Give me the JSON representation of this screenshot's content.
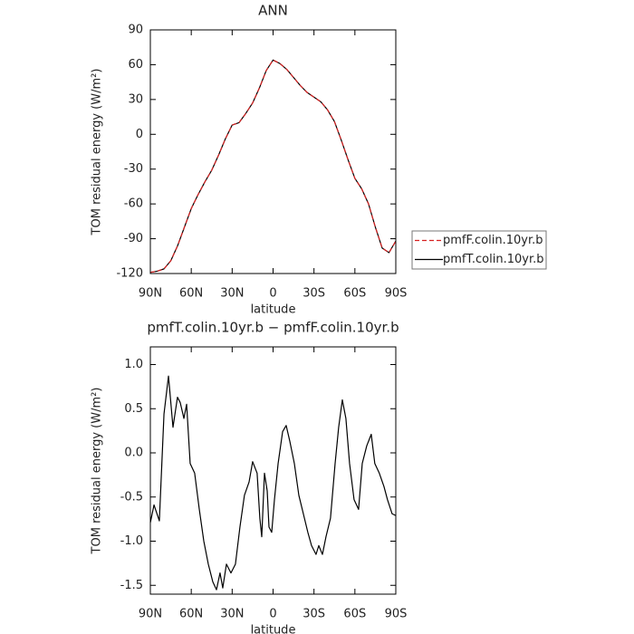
{
  "chart_data": [
    {
      "type": "line",
      "title": "ANN",
      "xlabel": "latitude",
      "ylabel": "TOM residual energy (W/m²)",
      "x": [
        90,
        85,
        80,
        75,
        70,
        65,
        60,
        55,
        50,
        45,
        40,
        35,
        30,
        25,
        20,
        15,
        10,
        5,
        0,
        -5,
        -10,
        -15,
        -20,
        -25,
        -30,
        -35,
        -40,
        -45,
        -50,
        -55,
        -60,
        -65,
        -70,
        -75,
        -80,
        -85,
        -90
      ],
      "series": [
        {
          "name": "pmfF.colin.10yr.b",
          "color": "#d62020",
          "dash": true,
          "values": [
            -119,
            -118,
            -116,
            -109,
            -96,
            -80,
            -64,
            -52,
            -41,
            -31,
            -18,
            -4,
            8,
            10,
            18,
            27,
            40,
            55,
            64,
            61,
            56,
            49,
            42,
            36,
            32,
            28,
            21,
            11,
            -5,
            -22,
            -38,
            -47,
            -60,
            -80,
            -98,
            -102,
            -92
          ]
        },
        {
          "name": "pmfT.colin.10yr.b",
          "color": "#000000",
          "dash": false,
          "values": [
            -119,
            -118,
            -116,
            -109,
            -96,
            -80,
            -64,
            -52,
            -41,
            -31,
            -18,
            -4,
            8,
            10,
            18,
            27,
            40,
            55,
            64,
            61,
            56,
            49,
            42,
            36,
            32,
            28,
            21,
            11,
            -5,
            -22,
            -38,
            -47,
            -60,
            -80,
            -98,
            -102,
            -92
          ]
        }
      ],
      "xlim": [
        90,
        -90
      ],
      "xticks": [
        {
          "value": 90,
          "label": "90N"
        },
        {
          "value": 60,
          "label": "60N"
        },
        {
          "value": 30,
          "label": "30N"
        },
        0,
        {
          "value": -30,
          "label": "30S"
        },
        {
          "value": -60,
          "label": "60S"
        },
        {
          "value": -90,
          "label": "90S"
        }
      ],
      "ylim": [
        -120,
        90
      ],
      "yticks": [
        90,
        60,
        30,
        0,
        -30,
        -60,
        -90,
        -120
      ],
      "legend": "right"
    },
    {
      "type": "line",
      "title": "pmfT.colin.10yr.b − pmfF.colin.10yr.b",
      "xlabel": "latitude",
      "ylabel": "TOM residual energy (W/m²)",
      "x": [
        90,
        87.3,
        83.4,
        80,
        76.7,
        73.4,
        70.1,
        68.1,
        65.4,
        63.4,
        60.8,
        57.5,
        54.1,
        50.8,
        47.5,
        44.2,
        41.5,
        38.9,
        36.9,
        34.2,
        30.9,
        27.6,
        24.3,
        21,
        17.6,
        15,
        11.7,
        9.7,
        8.3,
        6.3,
        4.3,
        3,
        1,
        -1,
        -3.7,
        -7,
        -9.6,
        -12.3,
        -15.6,
        -18.9,
        -22.2,
        -25.5,
        -28.2,
        -31.5,
        -33.5,
        -36.2,
        -38.8,
        -42.1,
        -45.5,
        -48.1,
        -50.8,
        -53.4,
        -56.1,
        -59.4,
        -62.7,
        -65.4,
        -68.7,
        -72,
        -74.6,
        -77.9,
        -81.3,
        -83.9,
        -87.3,
        -90
      ],
      "values": [
        -0.79,
        -0.59,
        -0.77,
        0.44,
        0.87,
        0.29,
        0.63,
        0.57,
        0.39,
        0.55,
        -0.12,
        -0.23,
        -0.64,
        -1.0,
        -1.26,
        -1.46,
        -1.55,
        -1.36,
        -1.53,
        -1.26,
        -1.36,
        -1.26,
        -0.84,
        -0.48,
        -0.33,
        -0.1,
        -0.23,
        -0.74,
        -0.95,
        -0.23,
        -0.43,
        -0.84,
        -0.9,
        -0.53,
        -0.12,
        0.24,
        0.31,
        0.13,
        -0.12,
        -0.48,
        -0.69,
        -0.9,
        -1.05,
        -1.15,
        -1.05,
        -1.15,
        -0.95,
        -0.74,
        -0.12,
        0.29,
        0.6,
        0.39,
        -0.12,
        -0.53,
        -0.64,
        -0.12,
        0.08,
        0.21,
        -0.12,
        -0.23,
        -0.38,
        -0.53,
        -0.69,
        -0.71
      ],
      "color": "#000000",
      "xlim": [
        90,
        -90
      ],
      "xticks": [
        {
          "value": 90,
          "label": "90N"
        },
        {
          "value": 60,
          "label": "60N"
        },
        {
          "value": 30,
          "label": "30N"
        },
        0,
        {
          "value": -30,
          "label": "30S"
        },
        {
          "value": -60,
          "label": "60S"
        },
        {
          "value": -90,
          "label": "90S"
        }
      ],
      "ylim": [
        -1.6,
        1.2
      ],
      "yticks": [
        {
          "value": 1,
          "label": "1.0"
        },
        0.5,
        {
          "value": 0,
          "label": "0.0"
        },
        -0.5,
        {
          "value": -1,
          "label": "-1.0"
        },
        -1.5
      ]
    }
  ]
}
